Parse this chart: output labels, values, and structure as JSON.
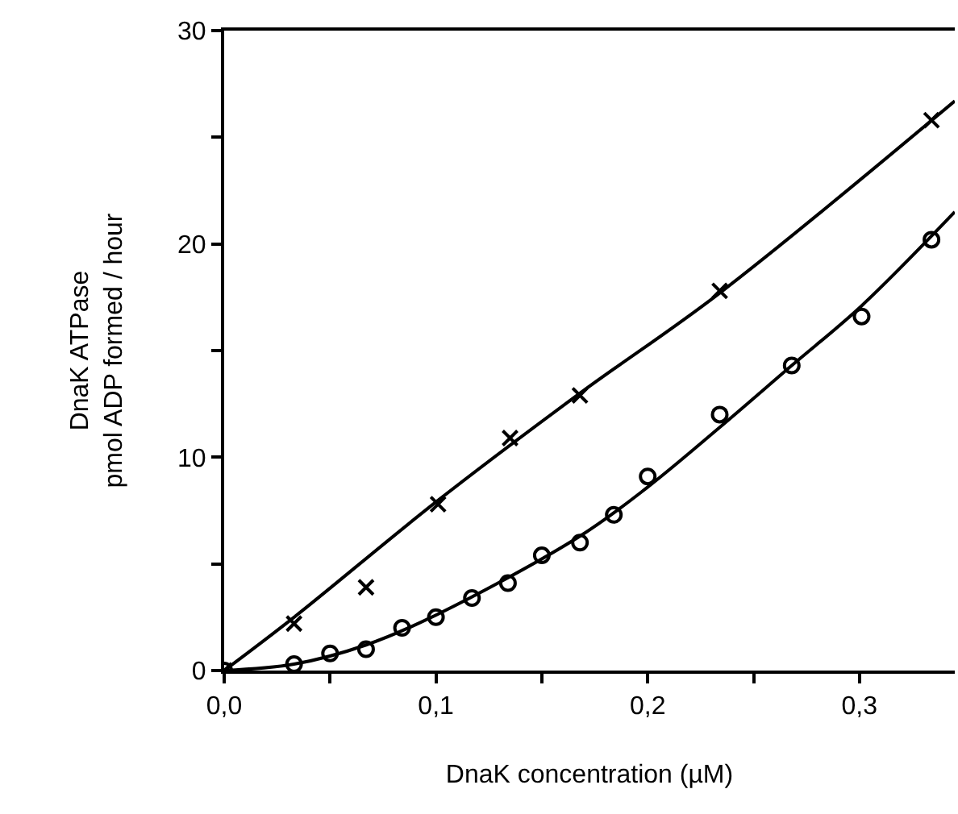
{
  "chart_data": {
    "type": "scatter",
    "xlabel": "DnaK concentration (µM)",
    "ylabel": "DnaK ATPase\npmol ADP formed / hour",
    "xlim": [
      0,
      0.345
    ],
    "ylim": [
      0,
      30
    ],
    "xticks": [
      {
        "value": 0,
        "label": "0,0"
      },
      {
        "value": 0.05,
        "label": null
      },
      {
        "value": 0.1,
        "label": "0,1"
      },
      {
        "value": 0.15,
        "label": null
      },
      {
        "value": 0.2,
        "label": "0,2"
      },
      {
        "value": 0.25,
        "label": null
      },
      {
        "value": 0.3,
        "label": "0,3"
      }
    ],
    "yticks": [
      0,
      {
        "value": 5,
        "label": null
      },
      10,
      {
        "value": 15,
        "label": null
      },
      20,
      {
        "value": 25,
        "label": null
      },
      30
    ],
    "series": [
      {
        "marker": "cross",
        "color": "#000000",
        "x": [
          0,
          0.033,
          0.067,
          0.101,
          0.135,
          0.168,
          0.234,
          0.334
        ],
        "values": [
          0,
          2.2,
          3.9,
          7.8,
          10.9,
          12.9,
          17.8,
          25.8
        ]
      },
      {
        "marker": "circle",
        "color": "#000000",
        "x": [
          0,
          0.033,
          0.05,
          0.067,
          0.084,
          0.1,
          0.117,
          0.134,
          0.15,
          0.168,
          0.184,
          0.2,
          0.234,
          0.268,
          0.301,
          0.334
        ],
        "values": [
          0,
          0.3,
          0.8,
          1.0,
          2.0,
          2.5,
          3.4,
          4.1,
          5.4,
          6.0,
          7.3,
          9.1,
          12.0,
          14.3,
          16.6,
          20.2
        ]
      },
      {
        "type": "line",
        "line_style": "solid",
        "color": "#000000",
        "x": [
          0,
          0.033,
          0.1,
          0.168,
          0.234,
          0.345
        ],
        "values": [
          0,
          2.5,
          7.9,
          13.0,
          17.7,
          26.7
        ]
      },
      {
        "type": "line",
        "line_style": "solid",
        "color": "#000000",
        "x": [
          0,
          0.033,
          0.067,
          0.1,
          0.168,
          0.2,
          0.234,
          0.268,
          0.301,
          0.345
        ],
        "values": [
          0,
          0.3,
          1.2,
          2.6,
          6.3,
          8.6,
          11.4,
          14.3,
          17.1,
          21.5
        ]
      }
    ]
  }
}
